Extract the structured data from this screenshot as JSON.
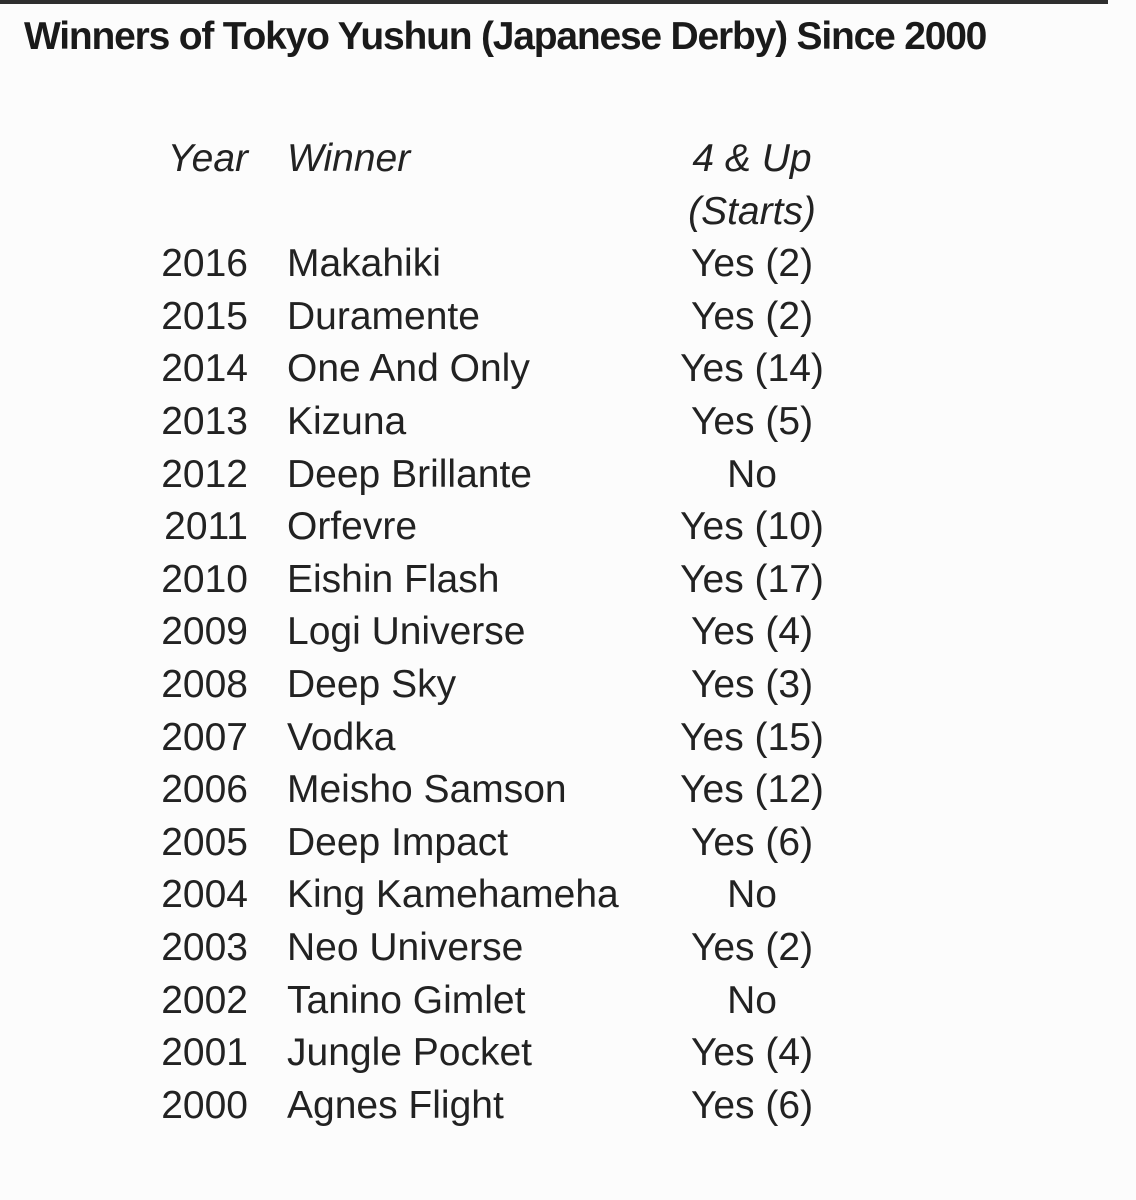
{
  "page": {
    "title": "Winners of Tokyo Yushun (Japanese Derby) Since 2000",
    "colors": {
      "background": "#fcfcfc",
      "ink": "#222222",
      "scan_line": "#2e2e2e"
    }
  },
  "table": {
    "headers": {
      "year": "Year",
      "winner": "Winner",
      "starts_line1": "4 & Up",
      "starts_line2": "(Starts)"
    },
    "rows": [
      {
        "year": "2016",
        "winner": "Makahiki",
        "starts": "Yes (2)"
      },
      {
        "year": "2015",
        "winner": "Duramente",
        "starts": "Yes (2)"
      },
      {
        "year": "2014",
        "winner": "One And Only",
        "starts": "Yes (14)"
      },
      {
        "year": "2013",
        "winner": "Kizuna",
        "starts": "Yes (5)"
      },
      {
        "year": "2012",
        "winner": "Deep Brillante",
        "starts": "No"
      },
      {
        "year": "2011",
        "winner": "Orfevre",
        "starts": "Yes (10)"
      },
      {
        "year": "2010",
        "winner": "Eishin Flash",
        "starts": "Yes (17)"
      },
      {
        "year": "2009",
        "winner": "Logi Universe",
        "starts": "Yes (4)"
      },
      {
        "year": "2008",
        "winner": "Deep Sky",
        "starts": "Yes (3)"
      },
      {
        "year": "2007",
        "winner": "Vodka",
        "starts": "Yes (15)"
      },
      {
        "year": "2006",
        "winner": "Meisho Samson",
        "starts": "Yes (12)"
      },
      {
        "year": "2005",
        "winner": "Deep Impact",
        "starts": "Yes (6)"
      },
      {
        "year": "2004",
        "winner": "King Kamehameha",
        "starts": "No"
      },
      {
        "year": "2003",
        "winner": "Neo Universe",
        "starts": "Yes (2)"
      },
      {
        "year": "2002",
        "winner": "Tanino Gimlet",
        "starts": "No"
      },
      {
        "year": "2001",
        "winner": "Jungle Pocket",
        "starts": "Yes (4)"
      },
      {
        "year": "2000",
        "winner": "Agnes Flight",
        "starts": "Yes (6)"
      }
    ]
  }
}
